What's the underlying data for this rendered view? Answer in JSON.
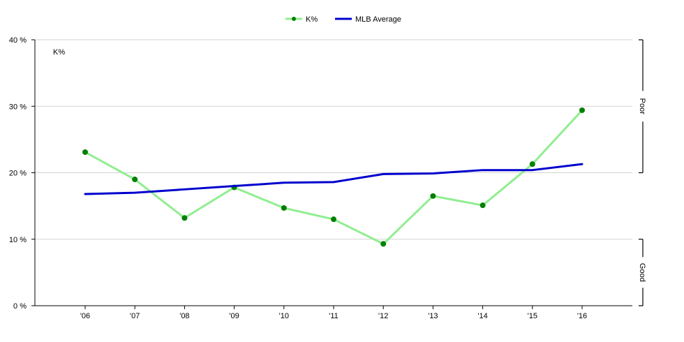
{
  "chart_data": {
    "type": "line",
    "title": "K%",
    "x": [
      "'06",
      "'07",
      "'08",
      "'09",
      "'10",
      "'11",
      "'12",
      "'13",
      "'14",
      "'15",
      "'16"
    ],
    "series": [
      {
        "name": "K%",
        "color": "#90ee90",
        "marker_color": "#008000",
        "values": [
          23.1,
          19.0,
          13.2,
          17.8,
          14.7,
          13.0,
          9.3,
          16.5,
          15.1,
          21.3,
          29.4
        ]
      },
      {
        "name": "MLB Average",
        "color": "#0000cd",
        "values": [
          16.8,
          17.0,
          17.5,
          18.0,
          18.5,
          18.6,
          19.8,
          19.9,
          20.4,
          20.4,
          21.3
        ]
      }
    ],
    "ylim": [
      0,
      40
    ],
    "yticks": [
      "0 %",
      "10 %",
      "20 %",
      "30 %",
      "40 %"
    ],
    "grid": true,
    "legend": "top-center",
    "bands": [
      {
        "label": "Poor",
        "range": [
          20,
          40
        ]
      },
      {
        "label": "Good",
        "range": [
          0,
          10
        ]
      }
    ]
  }
}
